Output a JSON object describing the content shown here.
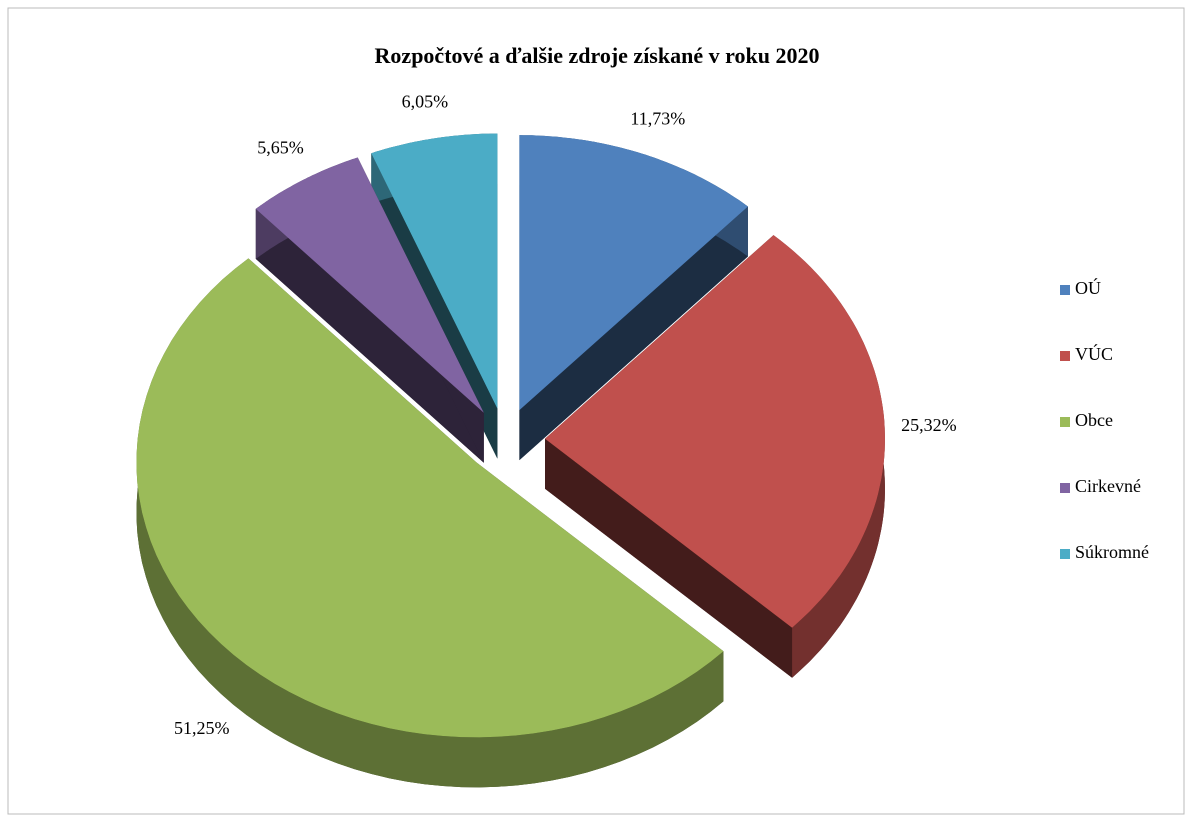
{
  "chart_data": {
    "type": "pie",
    "title": "Rozpočtové a ďalšie zdroje získané v roku 2020",
    "categories": [
      "OÚ",
      "VÚC",
      "Obce",
      "Cirkevné",
      "Súkromné"
    ],
    "values": [
      11.73,
      25.32,
      51.25,
      5.65,
      6.05
    ],
    "value_labels": [
      "11,73%",
      "25,32%",
      "51,25%",
      "5,65%",
      "6,05%"
    ],
    "colors": [
      "#4f81bd",
      "#c0504d",
      "#9bbb59",
      "#8064a2",
      "#4bacc6"
    ],
    "legend": "right"
  }
}
